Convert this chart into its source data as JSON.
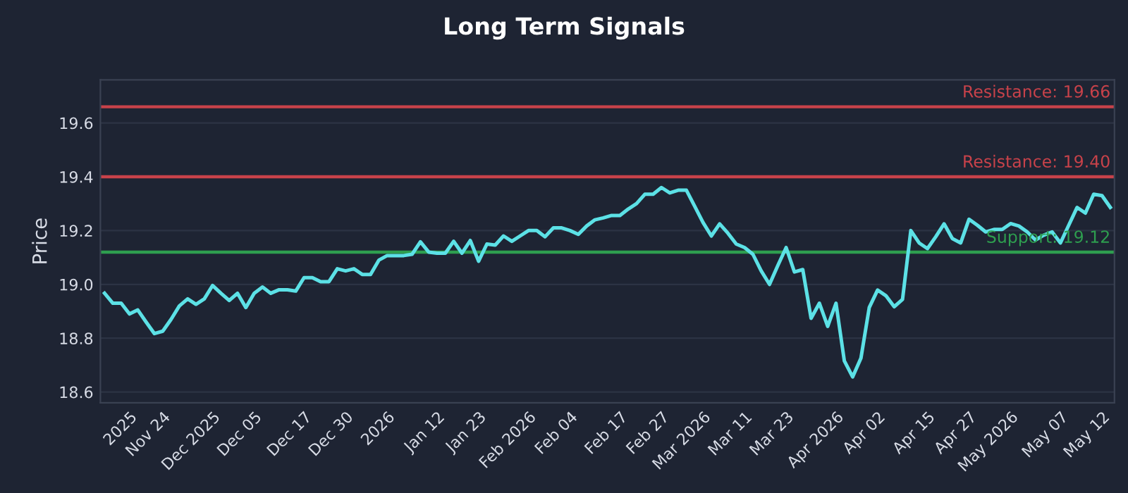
{
  "chart_data": {
    "type": "line",
    "title": "Long Term Signals",
    "ylabel": "Price",
    "categories": [
      null,
      null,
      null,
      "2025",
      null,
      null,
      null,
      "Nov 24",
      null,
      null,
      null,
      null,
      null,
      "Dec 2025",
      null,
      null,
      null,
      null,
      "Dec 05",
      null,
      null,
      null,
      null,
      null,
      "Dec 17",
      null,
      null,
      null,
      null,
      "Dec 30",
      null,
      null,
      null,
      null,
      "2026",
      null,
      null,
      null,
      null,
      null,
      "Jan 12",
      null,
      null,
      null,
      null,
      "Jan 23",
      null,
      null,
      null,
      null,
      null,
      "Feb 2026",
      null,
      null,
      null,
      null,
      "Feb 04",
      null,
      null,
      null,
      null,
      null,
      "Feb 17",
      null,
      null,
      null,
      null,
      "Feb 27",
      null,
      null,
      null,
      null,
      "Mar 2026",
      null,
      null,
      null,
      null,
      "Mar 11",
      null,
      null,
      null,
      null,
      "Mar 23",
      null,
      null,
      null,
      null,
      null,
      "Apr 2026",
      null,
      null,
      null,
      null,
      "Apr 02",
      null,
      null,
      null,
      null,
      null,
      "Apr 15",
      null,
      null,
      null,
      null,
      "Apr 27",
      null,
      null,
      null,
      null,
      "May 2026",
      null,
      null,
      null,
      null,
      null,
      "May 07",
      null,
      null,
      null,
      null,
      "May 12",
      null
    ],
    "series": [
      {
        "color": "#5ce1e6",
        "values": [
          18.967,
          18.93,
          18.93,
          18.89,
          18.905,
          18.86,
          18.817,
          18.826,
          18.87,
          18.92,
          18.946,
          18.926,
          18.946,
          18.996,
          18.967,
          18.94,
          18.967,
          18.914,
          18.967,
          18.99,
          18.967,
          18.98,
          18.98,
          18.975,
          19.025,
          19.025,
          19.01,
          19.01,
          19.058,
          19.05,
          19.058,
          19.037,
          19.037,
          19.09,
          19.107,
          19.107,
          19.107,
          19.112,
          19.158,
          19.12,
          19.116,
          19.116,
          19.16,
          19.116,
          19.163,
          19.086,
          19.15,
          19.146,
          19.18,
          19.16,
          19.18,
          19.2,
          19.2,
          19.177,
          19.21,
          19.21,
          19.2,
          19.186,
          19.217,
          19.24,
          19.247,
          19.256,
          19.256,
          19.28,
          19.3,
          19.335,
          19.335,
          19.36,
          19.34,
          19.35,
          19.35,
          19.29,
          19.23,
          19.18,
          19.225,
          19.19,
          19.15,
          19.137,
          19.112,
          19.05,
          19.0,
          19.07,
          19.137,
          19.046,
          19.055,
          18.874,
          18.93,
          18.844,
          18.93,
          18.716,
          18.656,
          18.726,
          18.914,
          18.979,
          18.958,
          18.917,
          18.944,
          19.2,
          19.154,
          19.133,
          19.177,
          19.225,
          19.17,
          19.154,
          19.242,
          19.22,
          19.195,
          19.204,
          19.204,
          19.226,
          19.217,
          19.195,
          19.165,
          19.183,
          19.195,
          19.154,
          19.22,
          19.286,
          19.265,
          19.335,
          19.33,
          19.286
        ]
      }
    ],
    "ylim": [
      18.56,
      19.76
    ],
    "yticks": [
      {
        "value": 18.6,
        "label": "18.6"
      },
      {
        "value": 18.8,
        "label": "18.8"
      },
      {
        "value": 19.0,
        "label": "19.0"
      },
      {
        "value": 19.2,
        "label": "19.2"
      },
      {
        "value": 19.4,
        "label": "19.4"
      },
      {
        "value": 19.6,
        "label": "19.6"
      }
    ],
    "ref_lines": [
      {
        "axis": "y",
        "value": 19.66,
        "label": "Resistance: 19.66",
        "color": "#c8424a"
      },
      {
        "axis": "y",
        "value": 19.4,
        "label": "Resistance: 19.40",
        "color": "#c8424a"
      },
      {
        "axis": "y",
        "value": 19.12,
        "label": "Support: 19.12",
        "color": "#2e9e4f"
      }
    ],
    "grid": "y",
    "line_style": "solid"
  }
}
